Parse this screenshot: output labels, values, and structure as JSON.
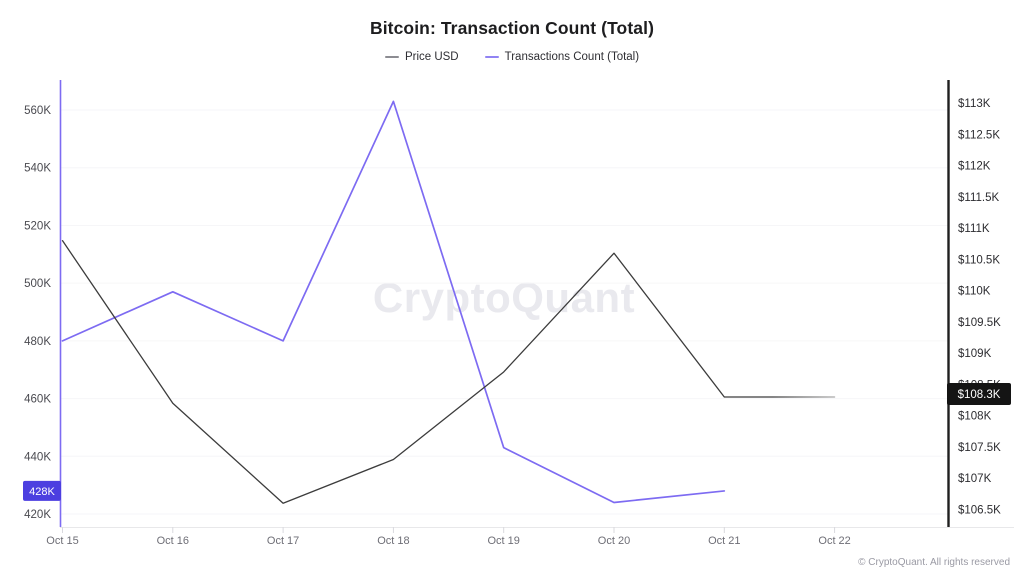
{
  "watermark": "CryptoQuant",
  "footer": {
    "copyright": "© CryptoQuant. All rights reserved"
  },
  "chart_data": {
    "type": "line",
    "title": "Bitcoin: Transaction Count (Total)",
    "legend_position": "top",
    "grid": "horizontal",
    "categories": [
      "Oct 15",
      "Oct 16",
      "Oct 17",
      "Oct 18",
      "Oct 19",
      "Oct 20",
      "Oct 21",
      "Oct 22"
    ],
    "series": [
      {
        "name": "Price USD",
        "axis": "right",
        "unit": "USD",
        "color": "#3c3c3c",
        "legend_dash_color": "#8c8c92",
        "values": [
          110800,
          108200,
          106600,
          107300,
          108700,
          110600,
          108300,
          108300
        ]
      },
      {
        "name": "Transactions Count (Total)",
        "axis": "left",
        "unit": "transactions",
        "color": "#7d6bf2",
        "legend_dash_color": "#9183f3",
        "values": [
          480000,
          497000,
          480000,
          563000,
          443000,
          424000,
          428000,
          null
        ]
      }
    ],
    "left_axis": {
      "range": [
        415500,
        570400
      ],
      "ticks": [
        {
          "label": "420K",
          "value": 420000
        },
        {
          "label": "440K",
          "value": 440000
        },
        {
          "label": "460K",
          "value": 460000
        },
        {
          "label": "480K",
          "value": 480000
        },
        {
          "label": "500K",
          "value": 500000
        },
        {
          "label": "520K",
          "value": 520000
        },
        {
          "label": "540K",
          "value": 540000
        },
        {
          "label": "560K",
          "value": 560000
        }
      ],
      "badge": {
        "label": "428K",
        "value": 428000,
        "bg": "#4c3fe0",
        "text_color": "#ffffff"
      }
    },
    "right_axis": {
      "range": [
        106220,
        113370
      ],
      "ticks": [
        {
          "label": "$106.5K",
          "value": 106500
        },
        {
          "label": "$107K",
          "value": 107000
        },
        {
          "label": "$107.5K",
          "value": 107500
        },
        {
          "label": "$108K",
          "value": 108000
        },
        {
          "label": "$108.5K",
          "value": 108500
        },
        {
          "label": "$109K",
          "value": 109000
        },
        {
          "label": "$109.5K",
          "value": 109500
        },
        {
          "label": "$110K",
          "value": 110000
        },
        {
          "label": "$110.5K",
          "value": 110500
        },
        {
          "label": "$111K",
          "value": 111000
        },
        {
          "label": "$111.5K",
          "value": 111500
        },
        {
          "label": "$112K",
          "value": 112000
        },
        {
          "label": "$112.5K",
          "value": 112500
        },
        {
          "label": "$113K",
          "value": 113000
        }
      ],
      "badge": {
        "label": "$108.3K",
        "value": 108300,
        "bg": "#141414",
        "text_color": "#ffffff"
      }
    }
  }
}
